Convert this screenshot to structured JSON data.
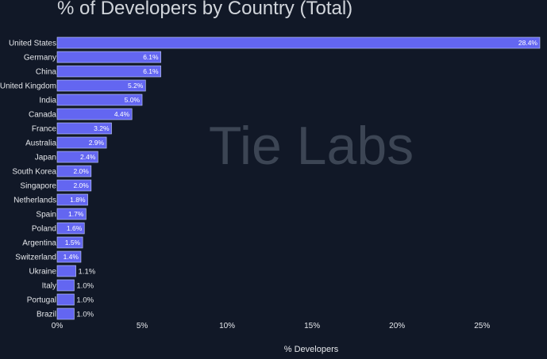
{
  "chart_data": {
    "type": "bar",
    "orientation": "horizontal",
    "title": "% of Developers by Country (Total)",
    "xlabel": "% Developers",
    "ylabel": "",
    "xlim": [
      0,
      28.4
    ],
    "xticks": [
      0,
      5,
      10,
      15,
      20,
      25
    ],
    "xtick_labels": [
      "0%",
      "5%",
      "10%",
      "15%",
      "20%",
      "25%"
    ],
    "categories": [
      "United States",
      "Germany",
      "China",
      "United Kingdom",
      "India",
      "Canada",
      "France",
      "Australia",
      "Japan",
      "South Korea",
      "Singapore",
      "Netherlands",
      "Spain",
      "Poland",
      "Argentina",
      "Switzerland",
      "Ukraine",
      "Italy",
      "Portugal",
      "Brazil"
    ],
    "values": [
      28.4,
      6.1,
      6.1,
      5.2,
      5.0,
      4.4,
      3.2,
      2.9,
      2.4,
      2.0,
      2.0,
      1.8,
      1.7,
      1.6,
      1.5,
      1.4,
      1.1,
      1.0,
      1.0,
      1.0
    ],
    "value_labels": [
      "28.4%",
      "6.1%",
      "6.1%",
      "5.2%",
      "5.0%",
      "4.4%",
      "3.2%",
      "2.9%",
      "2.4%",
      "2.0%",
      "2.0%",
      "1.8%",
      "1.7%",
      "1.6%",
      "1.5%",
      "1.4%",
      "1.1%",
      "1.0%",
      "1.0%",
      "1.0%"
    ],
    "watermark": "Tie Labs",
    "grid": false,
    "legend": "none"
  },
  "colors": {
    "background": "#111827",
    "bar": "#6366f1",
    "bar_outline": "#c7d2fe",
    "text": "#e5e7eb",
    "watermark": "#4b5563"
  }
}
